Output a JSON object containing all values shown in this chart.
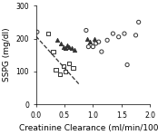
{
  "title": "",
  "xlabel": "Creatinine Clearance (ml/min/100g)",
  "ylabel": "SSPG (mg/dl)",
  "xlim": [
    0,
    2
  ],
  "ylim": [
    0,
    300
  ],
  "xticks": [
    0,
    0.5,
    1,
    1.5,
    2
  ],
  "yticks": [
    0,
    100,
    200,
    300
  ],
  "open_circles": [
    [
      0.02,
      220
    ],
    [
      0.88,
      225
    ],
    [
      0.92,
      175
    ],
    [
      1.0,
      175
    ],
    [
      1.05,
      185
    ],
    [
      1.1,
      190
    ],
    [
      1.15,
      160
    ],
    [
      1.25,
      195
    ],
    [
      1.35,
      215
    ],
    [
      1.45,
      205
    ],
    [
      1.55,
      215
    ],
    [
      1.6,
      120
    ],
    [
      1.75,
      210
    ],
    [
      1.8,
      250
    ]
  ],
  "closed_triangles": [
    [
      0.38,
      195
    ],
    [
      0.44,
      185
    ],
    [
      0.48,
      175
    ],
    [
      0.52,
      170
    ],
    [
      0.55,
      180
    ],
    [
      0.58,
      175
    ],
    [
      0.62,
      170
    ],
    [
      0.68,
      165
    ],
    [
      0.9,
      200
    ],
    [
      0.95,
      190
    ],
    [
      1.02,
      198
    ]
  ],
  "open_squares": [
    [
      0.22,
      215
    ],
    [
      0.3,
      160
    ],
    [
      0.35,
      105
    ],
    [
      0.42,
      90
    ],
    [
      0.48,
      115
    ],
    [
      0.52,
      100
    ],
    [
      0.58,
      125
    ],
    [
      0.65,
      110
    ]
  ],
  "dashed_line_x": [
    0.0,
    0.75
  ],
  "dashed_line_y": [
    207,
    62
  ],
  "background_color": "#ffffff",
  "marker_color": "#333333",
  "fontsize_axis_label": 6.5,
  "fontsize_tick": 5.5
}
